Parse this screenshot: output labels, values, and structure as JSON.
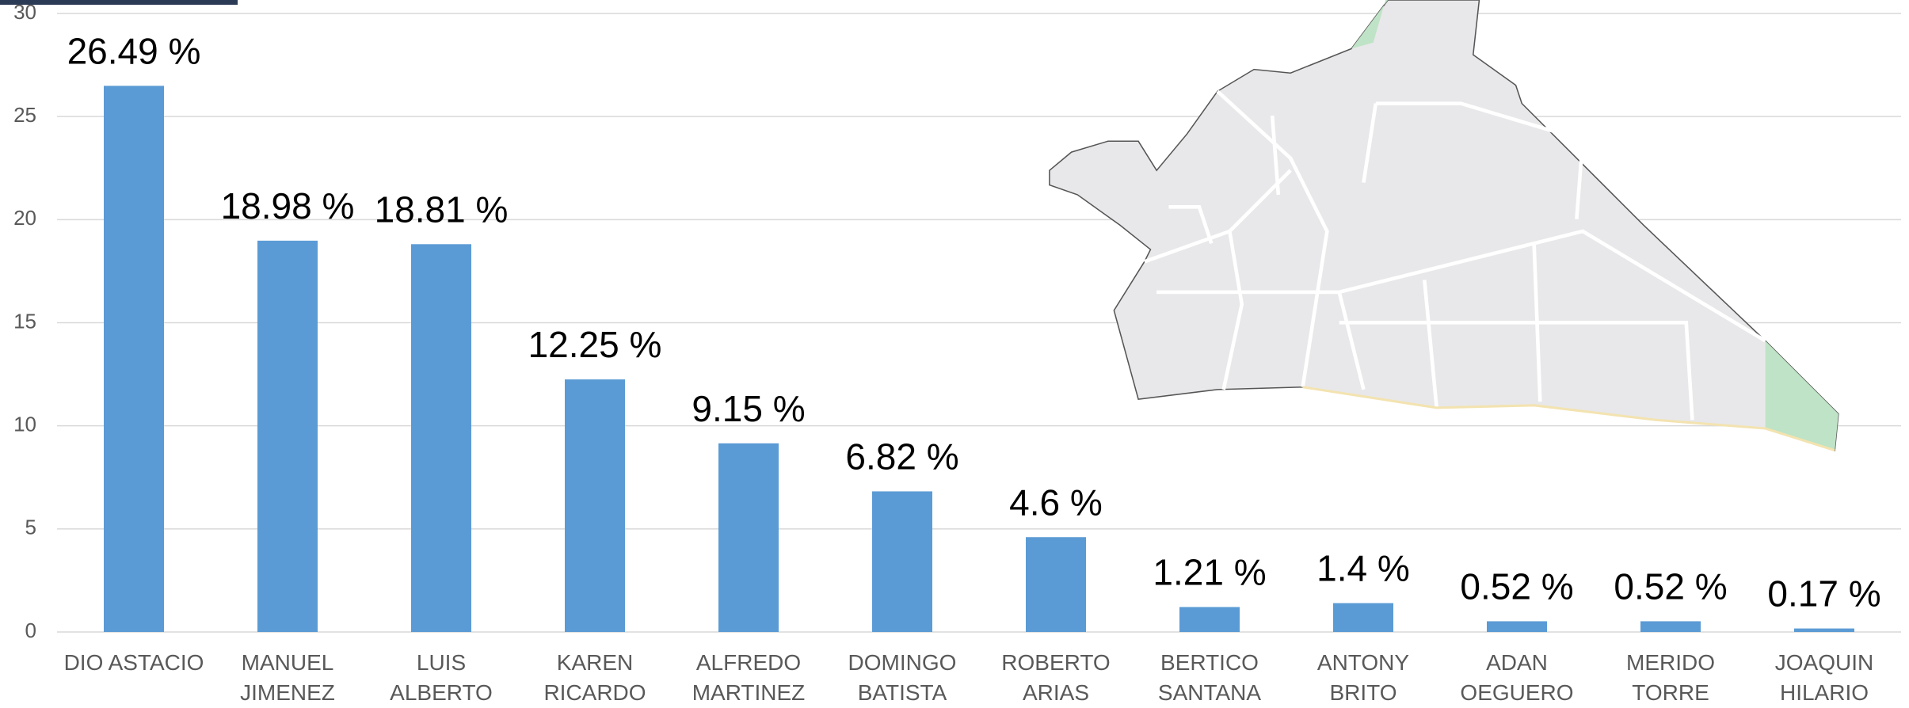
{
  "chart_data": {
    "type": "bar",
    "categories": [
      "DIO ASTACIO",
      "MANUEL\nJIMENEZ",
      "LUIS ALBERTO",
      "KAREN\nRICARDO",
      "ALFREDO\nMARTINEZ",
      "DOMINGO\nBATISTA",
      "ROBERTO\nARIAS",
      "BERTICO\nSANTANA",
      "ANTONY\nBRITO",
      "ADAN\nOEGUERO",
      "MERIDO\nTORRE",
      "JOAQUIN\nHILARIO"
    ],
    "values": [
      26.49,
      18.98,
      18.81,
      12.25,
      9.15,
      6.82,
      4.6,
      1.21,
      1.4,
      0.52,
      0.52,
      0.17
    ],
    "value_labels": [
      "26.49 %",
      "18.98 %",
      "18.81 %",
      "12.25 %",
      "9.15 %",
      "6.82 %",
      "4.6 %",
      "1.21 %",
      "1.4 %",
      "0.52 %",
      "0.52 %",
      "0.17 %"
    ],
    "color": "#5b9bd5",
    "ylim": [
      0,
      30
    ],
    "yticks": [
      0,
      5,
      10,
      15,
      20,
      25,
      30
    ],
    "grid": true
  }
}
